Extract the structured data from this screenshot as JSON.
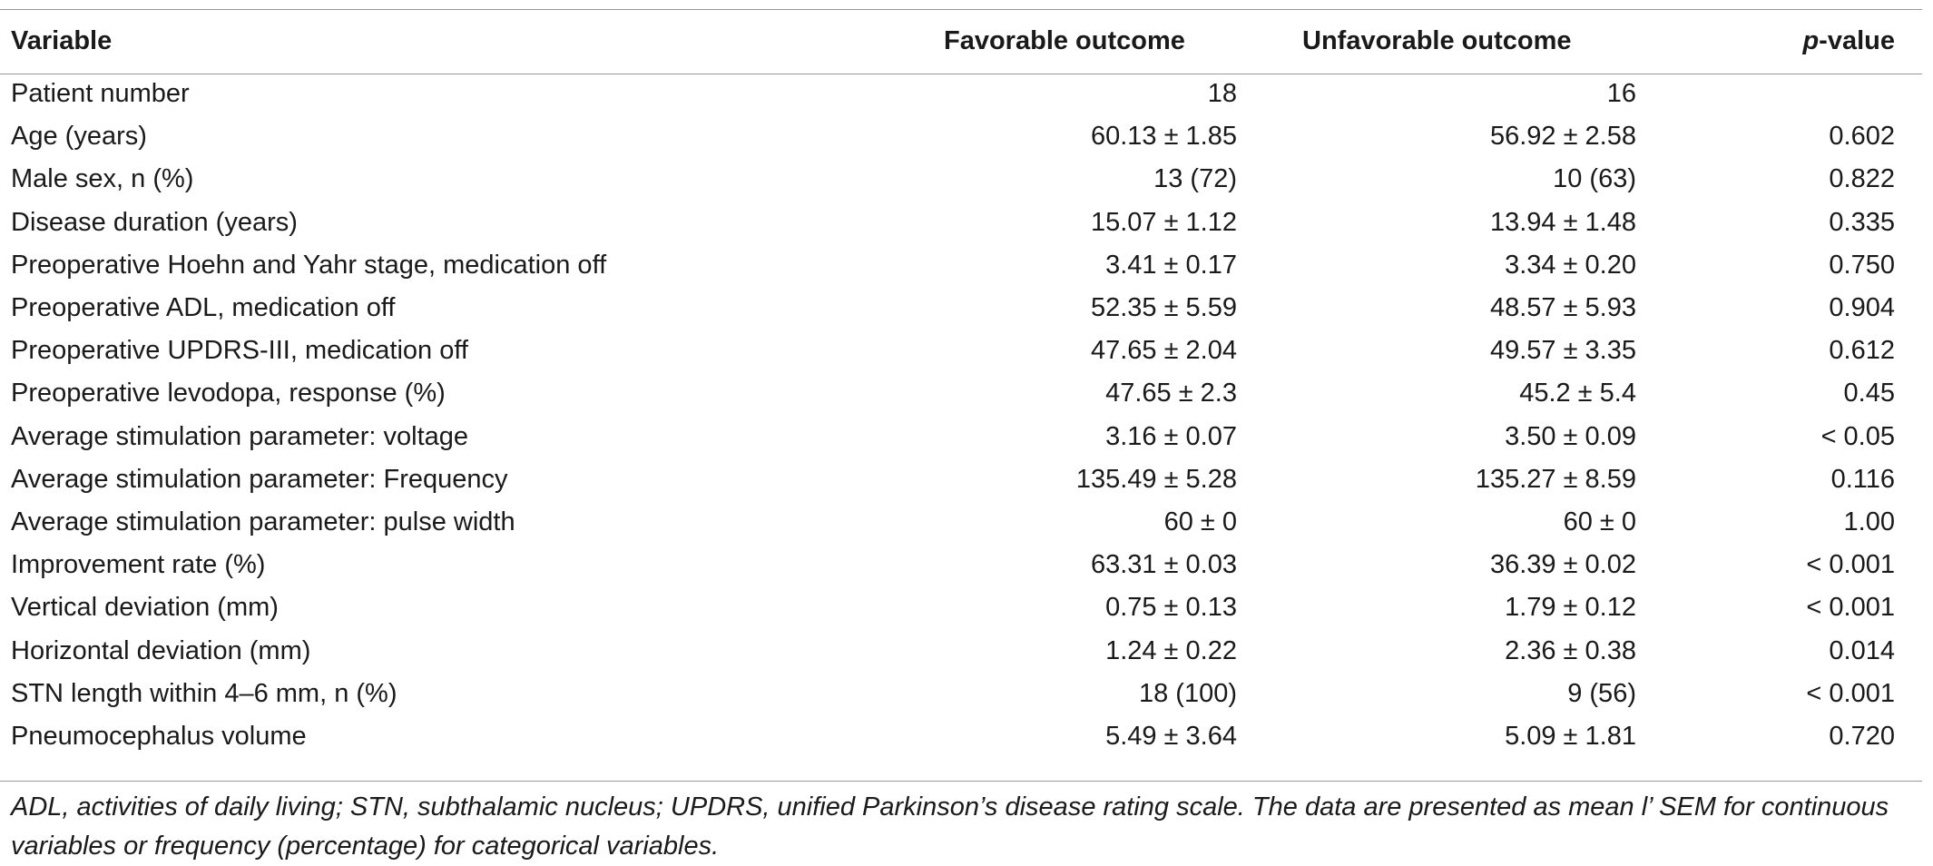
{
  "table": {
    "headers": {
      "variable": "Variable",
      "favorable": "Favorable outcome",
      "unfavorable": "Unfavorable outcome",
      "p_prefix": "p",
      "p_suffix": "-value"
    },
    "rows": [
      {
        "variable": "Patient number",
        "favorable": "18",
        "unfavorable": "16",
        "p": ""
      },
      {
        "variable": "Age (years)",
        "favorable": "60.13 ± 1.85",
        "unfavorable": "56.92 ± 2.58",
        "p": "0.602"
      },
      {
        "variable": "Male sex, n (%)",
        "favorable": "13 (72)",
        "unfavorable": "10 (63)",
        "p": "0.822"
      },
      {
        "variable": "Disease duration (years)",
        "favorable": "15.07 ± 1.12",
        "unfavorable": "13.94 ± 1.48",
        "p": "0.335"
      },
      {
        "variable": "Preoperative Hoehn and Yahr stage, medication off",
        "favorable": "3.41 ± 0.17",
        "unfavorable": "3.34 ± 0.20",
        "p": "0.750"
      },
      {
        "variable": "Preoperative ADL, medication off",
        "favorable": "52.35 ± 5.59",
        "unfavorable": "48.57 ± 5.93",
        "p": "0.904"
      },
      {
        "variable": "Preoperative UPDRS-III, medication off",
        "favorable": "47.65 ± 2.04",
        "unfavorable": "49.57 ± 3.35",
        "p": "0.612"
      },
      {
        "variable": "Preoperative levodopa, response (%)",
        "favorable": "47.65 ± 2.3",
        "unfavorable": "45.2 ± 5.4",
        "p": "0.45"
      },
      {
        "variable": "Average stimulation parameter: voltage",
        "favorable": "3.16 ± 0.07",
        "unfavorable": "3.50 ± 0.09",
        "p": "<  0.05"
      },
      {
        "variable": "Average stimulation parameter: Frequency",
        "favorable": "135.49 ± 5.28",
        "unfavorable": "135.27 ± 8.59",
        "p": "0.116"
      },
      {
        "variable": "Average stimulation parameter: pulse width",
        "favorable": "60 ± 0",
        "unfavorable": "60 ± 0",
        "p": "1.00"
      },
      {
        "variable": "Improvement rate (%)",
        "favorable": "63.31 ± 0.03",
        "unfavorable": "36.39 ± 0.02",
        "p": "< 0.001"
      },
      {
        "variable": "Vertical deviation (mm)",
        "favorable": "0.75 ± 0.13",
        "unfavorable": "1.79 ± 0.12",
        "p": "< 0.001"
      },
      {
        "variable": "Horizontal deviation (mm)",
        "favorable": "1.24 ± 0.22",
        "unfavorable": "2.36 ± 0.38",
        "p": "0.014"
      },
      {
        "variable": "STN length within 4–6 mm, n (%)",
        "favorable": "18 (100)",
        "unfavorable": "9 (56)",
        "p": "< 0.001"
      },
      {
        "variable": "Pneumocephalus volume",
        "favorable": "5.49 ± 3.64",
        "unfavorable": "5.09 ± 1.81",
        "p": "0.720"
      }
    ]
  },
  "footnote": "ADL, activities of daily living; STN, subthalamic nucleus; UPDRS, unified Parkinson’s disease rating scale. The data are presented as mean l’ SEM for continuous variables or frequency (percentage) for categorical variables."
}
